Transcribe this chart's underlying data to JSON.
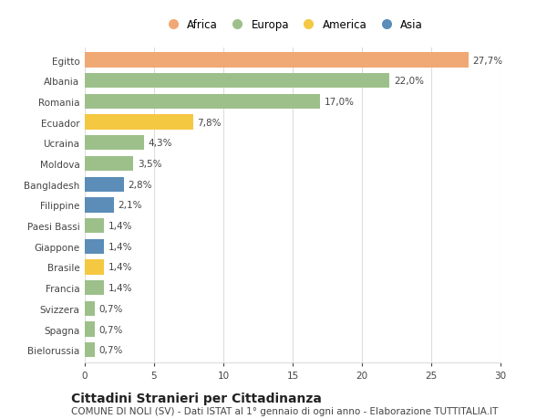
{
  "categories": [
    "Bielorussia",
    "Spagna",
    "Svizzera",
    "Francia",
    "Brasile",
    "Giappone",
    "Paesi Bassi",
    "Filippine",
    "Bangladesh",
    "Moldova",
    "Ucraina",
    "Ecuador",
    "Romania",
    "Albania",
    "Egitto"
  ],
  "values": [
    0.7,
    0.7,
    0.7,
    1.4,
    1.4,
    1.4,
    1.4,
    2.1,
    2.8,
    3.5,
    4.3,
    7.8,
    17.0,
    22.0,
    27.7
  ],
  "labels": [
    "0,7%",
    "0,7%",
    "0,7%",
    "1,4%",
    "1,4%",
    "1,4%",
    "1,4%",
    "2,1%",
    "2,8%",
    "3,5%",
    "4,3%",
    "7,8%",
    "17,0%",
    "22,0%",
    "27,7%"
  ],
  "colors": [
    "#9dc08b",
    "#9dc08b",
    "#9dc08b",
    "#9dc08b",
    "#f5c842",
    "#5b8db8",
    "#9dc08b",
    "#5b8db8",
    "#5b8db8",
    "#9dc08b",
    "#9dc08b",
    "#f5c842",
    "#9dc08b",
    "#9dc08b",
    "#f0a875"
  ],
  "legend": {
    "Africa": "#f0a875",
    "Europa": "#9dc08b",
    "America": "#f5c842",
    "Asia": "#5b8db8"
  },
  "title": "Cittadini Stranieri per Cittadinanza",
  "subtitle": "COMUNE DI NOLI (SV) - Dati ISTAT al 1° gennaio di ogni anno - Elaborazione TUTTITALIA.IT",
  "xlim": [
    0,
    30
  ],
  "xticks": [
    0,
    5,
    10,
    15,
    20,
    25,
    30
  ],
  "bar_height": 0.72,
  "background_color": "#ffffff",
  "grid_color": "#dddddd",
  "text_color": "#444444",
  "title_fontsize": 10,
  "subtitle_fontsize": 7.5,
  "label_fontsize": 7.5,
  "tick_fontsize": 7.5,
  "legend_fontsize": 8.5
}
